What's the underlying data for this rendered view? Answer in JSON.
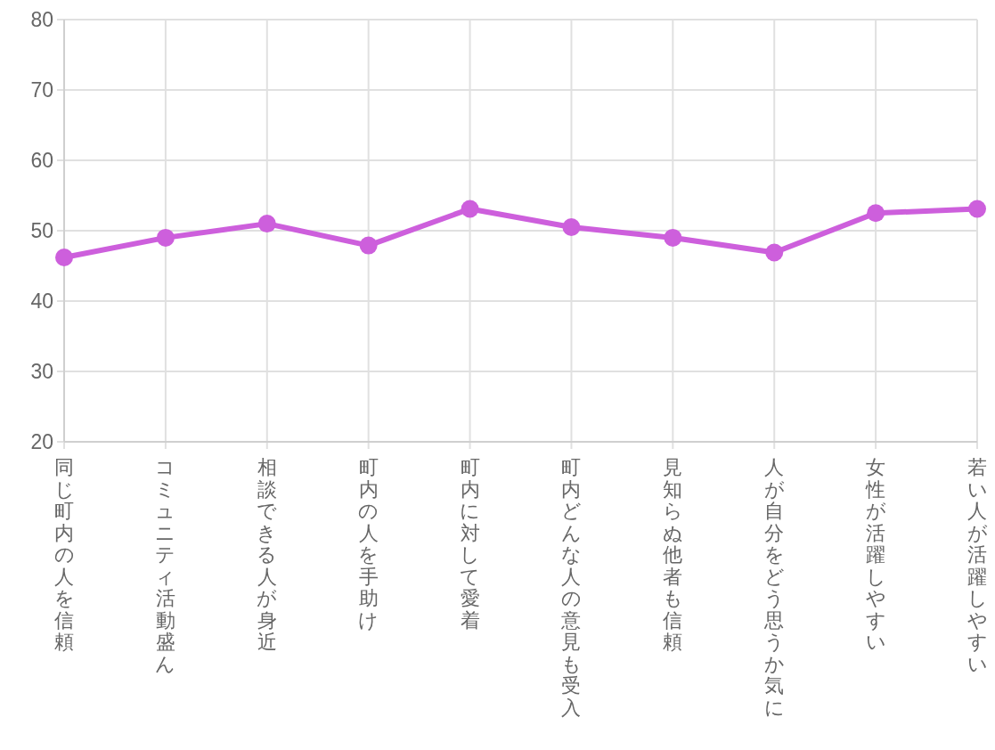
{
  "chart_data": {
    "type": "line",
    "categories": [
      "同じ町内の人を信頼",
      "コミュニティ活動盛ん",
      "相談できる人が身近",
      "町内の人を手助け",
      "町内に対して愛着",
      "町内どんな人の意見も受入",
      "見知らぬ他者も信頼",
      "人が自分をどう思うか気に",
      "女性が活躍しやすい",
      "若い人が活躍しやすい"
    ],
    "series": [
      {
        "color": "#cd5fdc",
        "values": [
          46.2,
          49.0,
          51.0,
          47.9,
          53.1,
          50.5,
          49.0,
          46.9,
          52.5,
          53.1
        ]
      }
    ],
    "ylim": [
      20,
      80
    ],
    "yticks": [
      20,
      30,
      40,
      50,
      60,
      70,
      80
    ],
    "grid": true,
    "marker": "circle",
    "line_style": "solid"
  }
}
